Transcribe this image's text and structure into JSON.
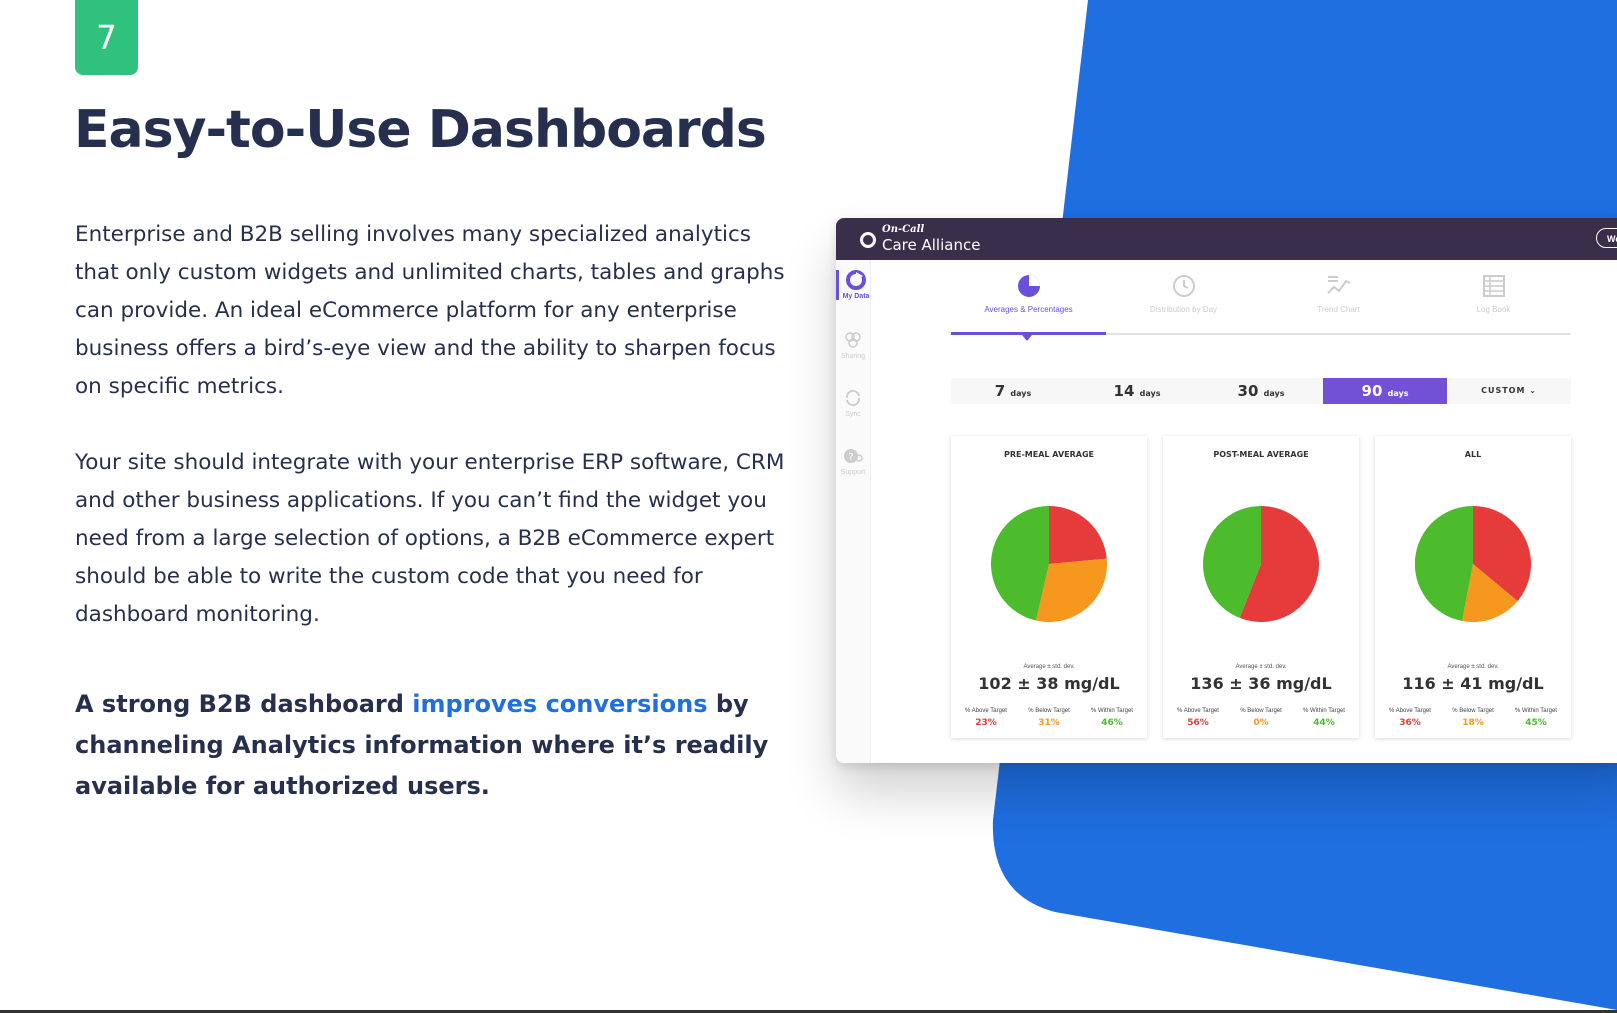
{
  "page": {
    "badge": "7",
    "title": "Easy-to-Use Dashboards",
    "paragraph1": "Enterprise and B2B selling involves many specialized analytics that only custom widgets and unlimited charts, tables and graphs can provide. An ideal eCommerce platform for any enterprise business offers a bird’s-eye view and the ability to sharpen focus on specific metrics.",
    "paragraph2": "Your site should integrate with your enterprise ERP software, CRM and other business applications. If you can’t find the widget you need from a large selection of options, a B2B eCommerce expert should be able to write the custom code that you need for dashboard monitoring.",
    "callout": {
      "before": "A strong B2B dashboard ",
      "link": "improves conversions",
      "after": " by channeling  Analytics information where it’s readily available for authorized users."
    }
  },
  "colors": {
    "accent_green": "#2ec27e",
    "brand_blue": "#1f6fe0",
    "text_dark": "#26304e",
    "dashboard_purple": "#6b4fd6",
    "pie_red": "#e53b3b",
    "pie_orange": "#f6971e",
    "pie_green": "#4cbc2c"
  },
  "dashboard": {
    "brand_small": "On-Call",
    "brand_name": "Care Alliance",
    "top_button": "We",
    "sidebar": [
      {
        "label": "My Data",
        "icon": "pie-chart-icon"
      },
      {
        "label": "Sharing",
        "icon": "people-icon"
      },
      {
        "label": "Sync",
        "icon": "sync-icon"
      },
      {
        "label": "Support",
        "icon": "help-icon"
      }
    ],
    "tabs": [
      {
        "label": "Averages & Percentages",
        "icon": "pie-chart-icon"
      },
      {
        "label": "Distribution by Day",
        "icon": "clock-icon"
      },
      {
        "label": "Trend Chart",
        "icon": "trend-chart-icon"
      },
      {
        "label": "Log Book",
        "icon": "table-icon"
      }
    ],
    "ranges": [
      {
        "num": "7",
        "unit": "days"
      },
      {
        "num": "14",
        "unit": "days"
      },
      {
        "num": "30",
        "unit": "days"
      },
      {
        "num": "90",
        "unit": "days"
      }
    ],
    "custom": "CUSTOM ⌄",
    "avg_label": "Average ± std. dev.",
    "stat_labels": [
      "% Above Target",
      "% Below Target",
      "% Within Target"
    ],
    "cards": [
      {
        "title": "PRE-MEAL AVERAGE",
        "value": "102 ± 38 mg/dL",
        "above": "23%",
        "below": "31%",
        "within": "46%"
      },
      {
        "title": "POST-MEAL AVERAGE",
        "value": "136 ± 36 mg/dL",
        "above": "56%",
        "below": "0%",
        "within": "44%"
      },
      {
        "title": "ALL",
        "value": "116 ± 41 mg/dL",
        "above": "36%",
        "below": "18%",
        "within": "45%"
      }
    ]
  }
}
